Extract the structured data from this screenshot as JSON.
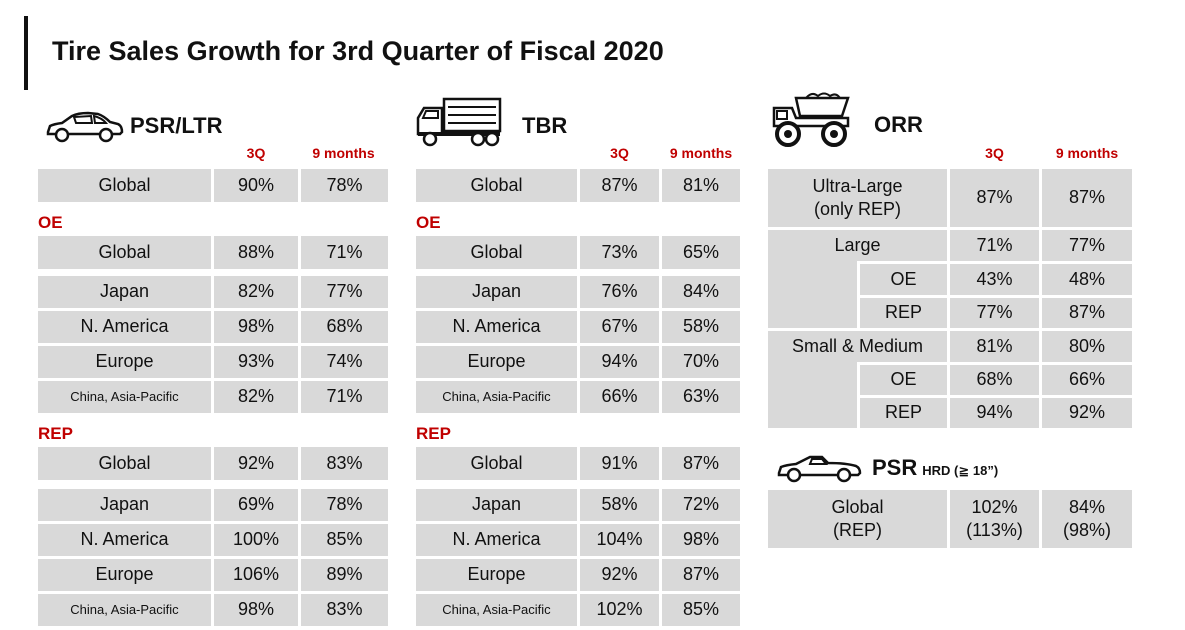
{
  "title": "Tire Sales Growth for 3rd Quarter of Fiscal 2020",
  "headers": {
    "q3": "3Q",
    "nine": "9 months"
  },
  "groups": {
    "oe": "OE",
    "rep": "REP"
  },
  "psr": {
    "label": "PSR/LTR",
    "icon": "car-icon",
    "global": {
      "name": "Global",
      "q3": "90%",
      "nine": "78%"
    },
    "oe": [
      {
        "name": "Global",
        "q3": "88%",
        "nine": "71%"
      },
      {
        "name": "Japan",
        "q3": "82%",
        "nine": "77%"
      },
      {
        "name": "N. America",
        "q3": "98%",
        "nine": "68%"
      },
      {
        "name": "Europe",
        "q3": "93%",
        "nine": "74%"
      },
      {
        "name": "China, Asia-Pacific",
        "q3": "82%",
        "nine": "71%"
      }
    ],
    "rep": [
      {
        "name": "Global",
        "q3": "92%",
        "nine": "83%"
      },
      {
        "name": "Japan",
        "q3": "69%",
        "nine": "78%"
      },
      {
        "name": "N. America",
        "q3": "100%",
        "nine": "85%"
      },
      {
        "name": "Europe",
        "q3": "106%",
        "nine": "89%"
      },
      {
        "name": "China, Asia-Pacific",
        "q3": "98%",
        "nine": "83%"
      }
    ]
  },
  "tbr": {
    "label": "TBR",
    "icon": "truck-icon",
    "global": {
      "name": "Global",
      "q3": "87%",
      "nine": "81%"
    },
    "oe": [
      {
        "name": "Global",
        "q3": "73%",
        "nine": "65%"
      },
      {
        "name": "Japan",
        "q3": "76%",
        "nine": "84%"
      },
      {
        "name": "N. America",
        "q3": "67%",
        "nine": "58%"
      },
      {
        "name": "Europe",
        "q3": "94%",
        "nine": "70%"
      },
      {
        "name": "China, Asia-Pacific",
        "q3": "66%",
        "nine": "63%"
      }
    ],
    "rep": [
      {
        "name": "Global",
        "q3": "91%",
        "nine": "87%"
      },
      {
        "name": "Japan",
        "q3": "58%",
        "nine": "72%"
      },
      {
        "name": "N. America",
        "q3": "104%",
        "nine": "98%"
      },
      {
        "name": "Europe",
        "q3": "92%",
        "nine": "87%"
      },
      {
        "name": "China, Asia-Pacific",
        "q3": "102%",
        "nine": "85%"
      }
    ]
  },
  "orr": {
    "label": "ORR",
    "icon": "dump-truck-icon",
    "ultra": {
      "name_line1": "Ultra-Large",
      "name_line2": "(only REP)",
      "q3": "87%",
      "nine": "87%"
    },
    "large": {
      "name": "Large",
      "q3": "71%",
      "nine": "77%"
    },
    "large_oe": {
      "name": "OE",
      "q3": "43%",
      "nine": "48%"
    },
    "large_rep": {
      "name": "REP",
      "q3": "77%",
      "nine": "87%"
    },
    "small": {
      "name": "Small & Medium",
      "q3": "81%",
      "nine": "80%"
    },
    "small_oe": {
      "name": "OE",
      "q3": "68%",
      "nine": "66%"
    },
    "small_rep": {
      "name": "REP",
      "q3": "94%",
      "nine": "92%"
    }
  },
  "hrd": {
    "label": "PSR",
    "sub": "HRD (≧ 18”)",
    "icon": "sports-car-icon",
    "name_line1": "Global",
    "name_line2": "(REP)",
    "q3_line1": "102%",
    "q3_line2": "(113%)",
    "nine_line1": "84%",
    "nine_line2": "(98%)"
  }
}
